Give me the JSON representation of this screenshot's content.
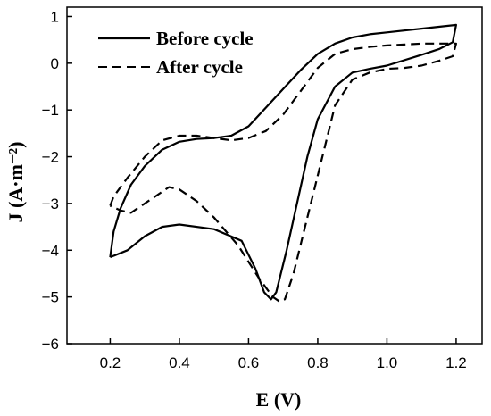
{
  "chart_data": {
    "type": "line",
    "xlabel": "E (V)",
    "ylabel": "J (A·m⁻²)",
    "xlim": [
      0.075,
      1.275
    ],
    "ylim": [
      -6,
      1.2
    ],
    "xticks": [
      0.2,
      0.4,
      0.6,
      0.8,
      1.0,
      1.2
    ],
    "xtick_labels": [
      "0.2",
      "0.4",
      "0.6",
      "0.8",
      "1.0",
      "1.2"
    ],
    "yticks": [
      1,
      0,
      -1,
      -2,
      -3,
      -4,
      -5,
      -6
    ],
    "ytick_labels": [
      "1",
      "0",
      "−1",
      "−2",
      "−3",
      "−4",
      "−5",
      "−6"
    ],
    "grid": false,
    "legend_position": "top-left",
    "series": [
      {
        "name": "Before cycle",
        "style": "solid",
        "color": "#000000",
        "points": [
          [
            0.2,
            -4.15
          ],
          [
            0.21,
            -3.6
          ],
          [
            0.23,
            -3.1
          ],
          [
            0.26,
            -2.6
          ],
          [
            0.3,
            -2.2
          ],
          [
            0.35,
            -1.85
          ],
          [
            0.4,
            -1.68
          ],
          [
            0.45,
            -1.62
          ],
          [
            0.5,
            -1.6
          ],
          [
            0.55,
            -1.55
          ],
          [
            0.6,
            -1.35
          ],
          [
            0.65,
            -0.95
          ],
          [
            0.7,
            -0.55
          ],
          [
            0.75,
            -0.15
          ],
          [
            0.8,
            0.2
          ],
          [
            0.85,
            0.42
          ],
          [
            0.9,
            0.55
          ],
          [
            0.95,
            0.62
          ],
          [
            1.0,
            0.66
          ],
          [
            1.05,
            0.7
          ],
          [
            1.1,
            0.74
          ],
          [
            1.15,
            0.78
          ],
          [
            1.2,
            0.82
          ],
          [
            1.19,
            0.45
          ],
          [
            1.15,
            0.3
          ],
          [
            1.1,
            0.18
          ],
          [
            1.0,
            -0.05
          ],
          [
            0.95,
            -0.12
          ],
          [
            0.9,
            -0.2
          ],
          [
            0.85,
            -0.5
          ],
          [
            0.8,
            -1.2
          ],
          [
            0.77,
            -2.0
          ],
          [
            0.74,
            -3.0
          ],
          [
            0.71,
            -4.0
          ],
          [
            0.68,
            -4.9
          ],
          [
            0.665,
            -5.05
          ],
          [
            0.645,
            -4.9
          ],
          [
            0.62,
            -4.4
          ],
          [
            0.58,
            -3.8
          ],
          [
            0.5,
            -3.55
          ],
          [
            0.4,
            -3.45
          ],
          [
            0.35,
            -3.5
          ],
          [
            0.3,
            -3.7
          ],
          [
            0.25,
            -4.0
          ],
          [
            0.2,
            -4.15
          ]
        ]
      },
      {
        "name": "After cycle",
        "style": "dashed",
        "color": "#000000",
        "points": [
          [
            0.2,
            -3.05
          ],
          [
            0.21,
            -2.85
          ],
          [
            0.25,
            -2.45
          ],
          [
            0.3,
            -2.0
          ],
          [
            0.35,
            -1.65
          ],
          [
            0.4,
            -1.55
          ],
          [
            0.45,
            -1.55
          ],
          [
            0.5,
            -1.6
          ],
          [
            0.55,
            -1.65
          ],
          [
            0.6,
            -1.6
          ],
          [
            0.65,
            -1.45
          ],
          [
            0.7,
            -1.1
          ],
          [
            0.75,
            -0.6
          ],
          [
            0.8,
            -0.1
          ],
          [
            0.85,
            0.2
          ],
          [
            0.9,
            0.3
          ],
          [
            0.95,
            0.35
          ],
          [
            1.0,
            0.38
          ],
          [
            1.05,
            0.4
          ],
          [
            1.1,
            0.42
          ],
          [
            1.15,
            0.42
          ],
          [
            1.2,
            0.42
          ],
          [
            1.19,
            0.15
          ],
          [
            1.15,
            0.05
          ],
          [
            1.1,
            -0.05
          ],
          [
            1.05,
            -0.1
          ],
          [
            1.0,
            -0.12
          ],
          [
            0.95,
            -0.2
          ],
          [
            0.9,
            -0.35
          ],
          [
            0.85,
            -0.9
          ],
          [
            0.82,
            -1.8
          ],
          [
            0.79,
            -2.7
          ],
          [
            0.76,
            -3.6
          ],
          [
            0.73,
            -4.5
          ],
          [
            0.705,
            -5.05
          ],
          [
            0.69,
            -5.1
          ],
          [
            0.67,
            -5.0
          ],
          [
            0.63,
            -4.6
          ],
          [
            0.57,
            -3.9
          ],
          [
            0.5,
            -3.3
          ],
          [
            0.45,
            -2.95
          ],
          [
            0.4,
            -2.7
          ],
          [
            0.37,
            -2.65
          ],
          [
            0.33,
            -2.85
          ],
          [
            0.29,
            -3.05
          ],
          [
            0.26,
            -3.2
          ],
          [
            0.23,
            -3.15
          ],
          [
            0.2,
            -3.05
          ]
        ]
      }
    ]
  }
}
